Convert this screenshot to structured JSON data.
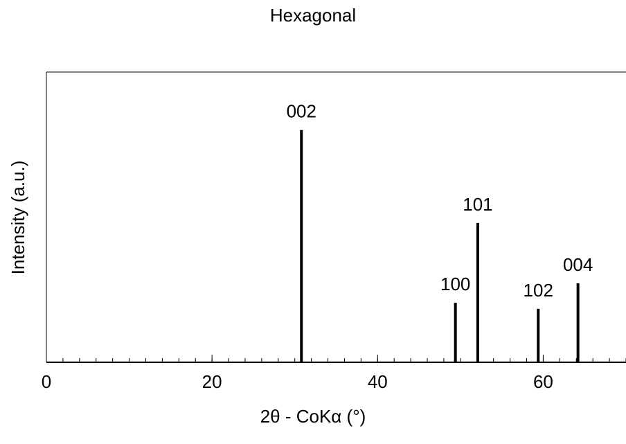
{
  "chart_data": {
    "type": "stick",
    "title": "Hexagonal",
    "xlabel": "2θ - CoKα (°)",
    "ylabel": "Intensity (a.u.)",
    "x": [
      30.8,
      49.4,
      52.1,
      59.4,
      64.2
    ],
    "values": [
      80,
      20.5,
      48,
      18.4,
      27.2
    ],
    "labels": [
      "002",
      "100",
      "101",
      "102",
      "004"
    ],
    "color": "#000000",
    "xlim": [
      0,
      70
    ],
    "xticks": [
      0,
      20,
      40,
      60
    ],
    "xminor": 2,
    "ylim": [
      0,
      100
    ]
  }
}
